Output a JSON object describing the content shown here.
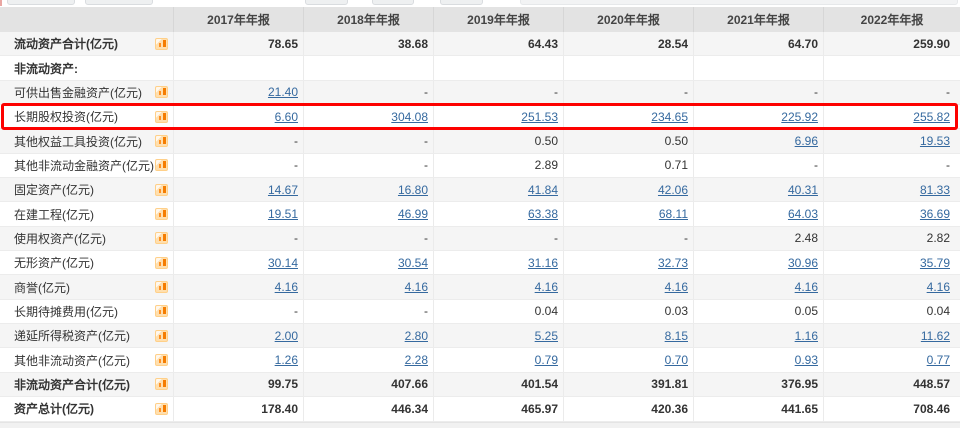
{
  "colors": {
    "link": "#35699f",
    "highlight_border": "#fd0100",
    "header_bg": "#e3e3e3",
    "row_alt_bg": "#f5f5f5",
    "icon_orange": "#f57c00"
  },
  "table": {
    "columns": [
      "2017年年报",
      "2018年年报",
      "2019年年报",
      "2020年年报",
      "2021年年报",
      "2022年年报"
    ],
    "rows": [
      {
        "label": "流动资产合计(亿元)",
        "has_icon": true,
        "bold": true,
        "highlight": false,
        "values": [
          {
            "v": "78.65",
            "link": false
          },
          {
            "v": "38.68",
            "link": false
          },
          {
            "v": "64.43",
            "link": false
          },
          {
            "v": "28.54",
            "link": false
          },
          {
            "v": "64.70",
            "link": false
          },
          {
            "v": "259.90",
            "link": false
          }
        ]
      },
      {
        "label": "非流动资产:",
        "has_icon": false,
        "bold": true,
        "highlight": false,
        "values": [
          {
            "v": "",
            "link": false
          },
          {
            "v": "",
            "link": false
          },
          {
            "v": "",
            "link": false
          },
          {
            "v": "",
            "link": false
          },
          {
            "v": "",
            "link": false
          },
          {
            "v": "",
            "link": false
          }
        ]
      },
      {
        "label": "可供出售金融资产(亿元)",
        "has_icon": true,
        "bold": false,
        "highlight": false,
        "values": [
          {
            "v": "21.40",
            "link": true
          },
          {
            "v": "-",
            "link": false
          },
          {
            "v": "-",
            "link": false
          },
          {
            "v": "-",
            "link": false
          },
          {
            "v": "-",
            "link": false
          },
          {
            "v": "-",
            "link": false
          }
        ]
      },
      {
        "label": "长期股权投资(亿元)",
        "has_icon": true,
        "bold": false,
        "highlight": true,
        "values": [
          {
            "v": "6.60",
            "link": true
          },
          {
            "v": "304.08",
            "link": true
          },
          {
            "v": "251.53",
            "link": true
          },
          {
            "v": "234.65",
            "link": true
          },
          {
            "v": "225.92",
            "link": true
          },
          {
            "v": "255.82",
            "link": true
          }
        ]
      },
      {
        "label": "其他权益工具投资(亿元)",
        "has_icon": true,
        "bold": false,
        "highlight": false,
        "values": [
          {
            "v": "-",
            "link": false
          },
          {
            "v": "-",
            "link": false
          },
          {
            "v": "0.50",
            "link": false
          },
          {
            "v": "0.50",
            "link": false
          },
          {
            "v": "6.96",
            "link": true
          },
          {
            "v": "19.53",
            "link": true
          }
        ]
      },
      {
        "label": "其他非流动金融资产(亿元)",
        "has_icon": true,
        "bold": false,
        "highlight": false,
        "values": [
          {
            "v": "-",
            "link": false
          },
          {
            "v": "-",
            "link": false
          },
          {
            "v": "2.89",
            "link": false
          },
          {
            "v": "0.71",
            "link": false
          },
          {
            "v": "-",
            "link": false
          },
          {
            "v": "-",
            "link": false
          }
        ]
      },
      {
        "label": "固定资产(亿元)",
        "has_icon": true,
        "bold": false,
        "highlight": false,
        "values": [
          {
            "v": "14.67",
            "link": true
          },
          {
            "v": "16.80",
            "link": true
          },
          {
            "v": "41.84",
            "link": true
          },
          {
            "v": "42.06",
            "link": true
          },
          {
            "v": "40.31",
            "link": true
          },
          {
            "v": "81.33",
            "link": true
          }
        ]
      },
      {
        "label": "在建工程(亿元)",
        "has_icon": true,
        "bold": false,
        "highlight": false,
        "values": [
          {
            "v": "19.51",
            "link": true
          },
          {
            "v": "46.99",
            "link": true
          },
          {
            "v": "63.38",
            "link": true
          },
          {
            "v": "68.11",
            "link": true
          },
          {
            "v": "64.03",
            "link": true
          },
          {
            "v": "36.69",
            "link": true
          }
        ]
      },
      {
        "label": "使用权资产(亿元)",
        "has_icon": true,
        "bold": false,
        "highlight": false,
        "values": [
          {
            "v": "-",
            "link": false
          },
          {
            "v": "-",
            "link": false
          },
          {
            "v": "-",
            "link": false
          },
          {
            "v": "-",
            "link": false
          },
          {
            "v": "2.48",
            "link": false
          },
          {
            "v": "2.82",
            "link": false
          }
        ]
      },
      {
        "label": "无形资产(亿元)",
        "has_icon": true,
        "bold": false,
        "highlight": false,
        "values": [
          {
            "v": "30.14",
            "link": true
          },
          {
            "v": "30.54",
            "link": true
          },
          {
            "v": "31.16",
            "link": true
          },
          {
            "v": "32.73",
            "link": true
          },
          {
            "v": "30.96",
            "link": true
          },
          {
            "v": "35.79",
            "link": true
          }
        ]
      },
      {
        "label": "商誉(亿元)",
        "has_icon": true,
        "bold": false,
        "highlight": false,
        "values": [
          {
            "v": "4.16",
            "link": true
          },
          {
            "v": "4.16",
            "link": true
          },
          {
            "v": "4.16",
            "link": true
          },
          {
            "v": "4.16",
            "link": true
          },
          {
            "v": "4.16",
            "link": true
          },
          {
            "v": "4.16",
            "link": true
          }
        ]
      },
      {
        "label": "长期待摊费用(亿元)",
        "has_icon": true,
        "bold": false,
        "highlight": false,
        "values": [
          {
            "v": "-",
            "link": false
          },
          {
            "v": "-",
            "link": false
          },
          {
            "v": "0.04",
            "link": false
          },
          {
            "v": "0.03",
            "link": false
          },
          {
            "v": "0.05",
            "link": false
          },
          {
            "v": "0.04",
            "link": false
          }
        ]
      },
      {
        "label": "递延所得税资产(亿元)",
        "has_icon": true,
        "bold": false,
        "highlight": false,
        "values": [
          {
            "v": "2.00",
            "link": true
          },
          {
            "v": "2.80",
            "link": true
          },
          {
            "v": "5.25",
            "link": true
          },
          {
            "v": "8.15",
            "link": true
          },
          {
            "v": "1.16",
            "link": true
          },
          {
            "v": "11.62",
            "link": true
          }
        ]
      },
      {
        "label": "其他非流动资产(亿元)",
        "has_icon": true,
        "bold": false,
        "highlight": false,
        "values": [
          {
            "v": "1.26",
            "link": true
          },
          {
            "v": "2.28",
            "link": true
          },
          {
            "v": "0.79",
            "link": true
          },
          {
            "v": "0.70",
            "link": true
          },
          {
            "v": "0.93",
            "link": true
          },
          {
            "v": "0.77",
            "link": true
          }
        ]
      },
      {
        "label": "非流动资产合计(亿元)",
        "has_icon": true,
        "bold": true,
        "highlight": false,
        "values": [
          {
            "v": "99.75",
            "link": false
          },
          {
            "v": "407.66",
            "link": false
          },
          {
            "v": "401.54",
            "link": false
          },
          {
            "v": "391.81",
            "link": false
          },
          {
            "v": "376.95",
            "link": false
          },
          {
            "v": "448.57",
            "link": false
          }
        ]
      },
      {
        "label": "资产总计(亿元)",
        "has_icon": true,
        "bold": true,
        "highlight": false,
        "values": [
          {
            "v": "178.40",
            "link": false
          },
          {
            "v": "446.34",
            "link": false
          },
          {
            "v": "465.97",
            "link": false
          },
          {
            "v": "420.36",
            "link": false
          },
          {
            "v": "441.65",
            "link": false
          },
          {
            "v": "708.46",
            "link": false
          }
        ]
      }
    ]
  }
}
